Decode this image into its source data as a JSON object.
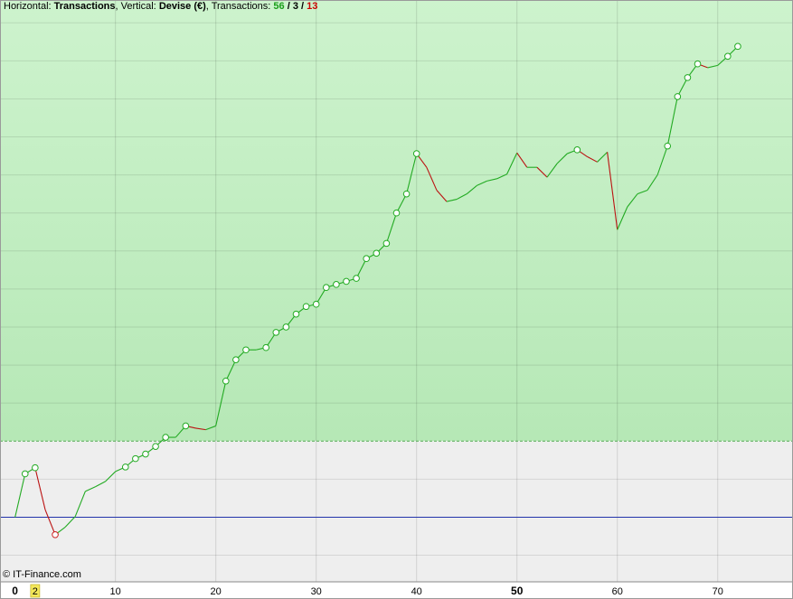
{
  "header": {
    "horizontal_label": "Horizontal:",
    "horizontal_value": "Transactions",
    "vertical_label": ", Vertical:",
    "vertical_value": "Devise (€)",
    "transactions_label": ", Transactions:",
    "count_green": "56",
    "sep1": " / ",
    "count_black": "3",
    "sep2": " / ",
    "count_red": "13"
  },
  "copyright": "© IT-Finance.com",
  "colors": {
    "positive_zone_top": "#cdf3cd",
    "positive_zone_bottom": "#b6e8b6",
    "negative_zone": "#eeeeee",
    "up_line": "#22aa22",
    "down_line": "#bb1111",
    "baseline": "#2233aa",
    "threshold_dashed": "#55aa55",
    "marker_up": "#22aa22",
    "marker_down": "#cc2222"
  },
  "chart_data": {
    "type": "line",
    "x_ticks": [
      {
        "value": 0,
        "label": "0",
        "style": "bold"
      },
      {
        "value": 2,
        "label": "2",
        "style": "highlight"
      },
      {
        "value": 10,
        "label": "10",
        "style": "normal"
      },
      {
        "value": 20,
        "label": "20",
        "style": "normal"
      },
      {
        "value": 30,
        "label": "30",
        "style": "normal"
      },
      {
        "value": 40,
        "label": "40",
        "style": "normal"
      },
      {
        "value": 50,
        "label": "50",
        "style": "bold"
      },
      {
        "value": 60,
        "label": "60",
        "style": "normal"
      },
      {
        "value": 70,
        "label": "70",
        "style": "normal"
      }
    ],
    "xlim": [
      -1.5,
      77.5
    ],
    "ylim": [
      -0.85,
      6.8
    ],
    "y_grid_step": 0.5,
    "baseline_y": 0,
    "threshold_y": 1.0,
    "x": [
      0,
      1,
      2,
      3,
      4,
      5,
      6,
      7,
      8,
      9,
      10,
      11,
      12,
      13,
      14,
      15,
      16,
      17,
      18,
      19,
      20,
      21,
      22,
      23,
      24,
      25,
      26,
      27,
      28,
      29,
      30,
      31,
      32,
      33,
      34,
      35,
      36,
      37,
      38,
      39,
      40,
      41,
      42,
      43,
      44,
      45,
      46,
      47,
      48,
      49,
      50,
      51,
      52,
      53,
      54,
      55,
      56,
      57,
      58,
      59,
      60,
      61,
      62,
      63,
      64,
      65,
      66,
      67,
      68,
      69,
      70,
      71,
      72
    ],
    "y": [
      0,
      0.57,
      0.65,
      0.1,
      -0.23,
      -0.13,
      0.01,
      0.34,
      0.4,
      0.47,
      0.6,
      0.66,
      0.77,
      0.83,
      0.93,
      1.05,
      1.05,
      1.2,
      1.17,
      1.15,
      1.2,
      1.79,
      2.07,
      2.2,
      2.2,
      2.23,
      2.43,
      2.5,
      2.67,
      2.77,
      2.8,
      3.02,
      3.06,
      3.1,
      3.14,
      3.4,
      3.47,
      3.6,
      4.0,
      4.25,
      4.78,
      4.6,
      4.3,
      4.15,
      4.18,
      4.25,
      4.36,
      4.42,
      4.45,
      4.51,
      4.79,
      4.6,
      4.6,
      4.47,
      4.65,
      4.78,
      4.83,
      4.74,
      4.67,
      4.8,
      3.78,
      4.08,
      4.25,
      4.3,
      4.5,
      4.88,
      5.53,
      5.78,
      5.96,
      5.91,
      5.94,
      6.06,
      6.19
    ],
    "markers": [
      {
        "x": 1,
        "kind": "up"
      },
      {
        "x": 2,
        "kind": "up"
      },
      {
        "x": 4,
        "kind": "down"
      },
      {
        "x": 11,
        "kind": "up"
      },
      {
        "x": 12,
        "kind": "up"
      },
      {
        "x": 13,
        "kind": "up"
      },
      {
        "x": 14,
        "kind": "up"
      },
      {
        "x": 15,
        "kind": "up"
      },
      {
        "x": 17,
        "kind": "up"
      },
      {
        "x": 21,
        "kind": "up"
      },
      {
        "x": 22,
        "kind": "up"
      },
      {
        "x": 23,
        "kind": "up"
      },
      {
        "x": 25,
        "kind": "up"
      },
      {
        "x": 26,
        "kind": "up"
      },
      {
        "x": 27,
        "kind": "up"
      },
      {
        "x": 28,
        "kind": "up"
      },
      {
        "x": 29,
        "kind": "up"
      },
      {
        "x": 30,
        "kind": "up"
      },
      {
        "x": 31,
        "kind": "up"
      },
      {
        "x": 32,
        "kind": "up"
      },
      {
        "x": 33,
        "kind": "up"
      },
      {
        "x": 34,
        "kind": "up"
      },
      {
        "x": 35,
        "kind": "up"
      },
      {
        "x": 36,
        "kind": "up"
      },
      {
        "x": 37,
        "kind": "up"
      },
      {
        "x": 38,
        "kind": "up"
      },
      {
        "x": 39,
        "kind": "up"
      },
      {
        "x": 40,
        "kind": "up"
      },
      {
        "x": 56,
        "kind": "up"
      },
      {
        "x": 65,
        "kind": "up"
      },
      {
        "x": 66,
        "kind": "up"
      },
      {
        "x": 67,
        "kind": "up"
      },
      {
        "x": 68,
        "kind": "up"
      },
      {
        "x": 71,
        "kind": "up"
      },
      {
        "x": 72,
        "kind": "up"
      }
    ],
    "grid": true
  }
}
